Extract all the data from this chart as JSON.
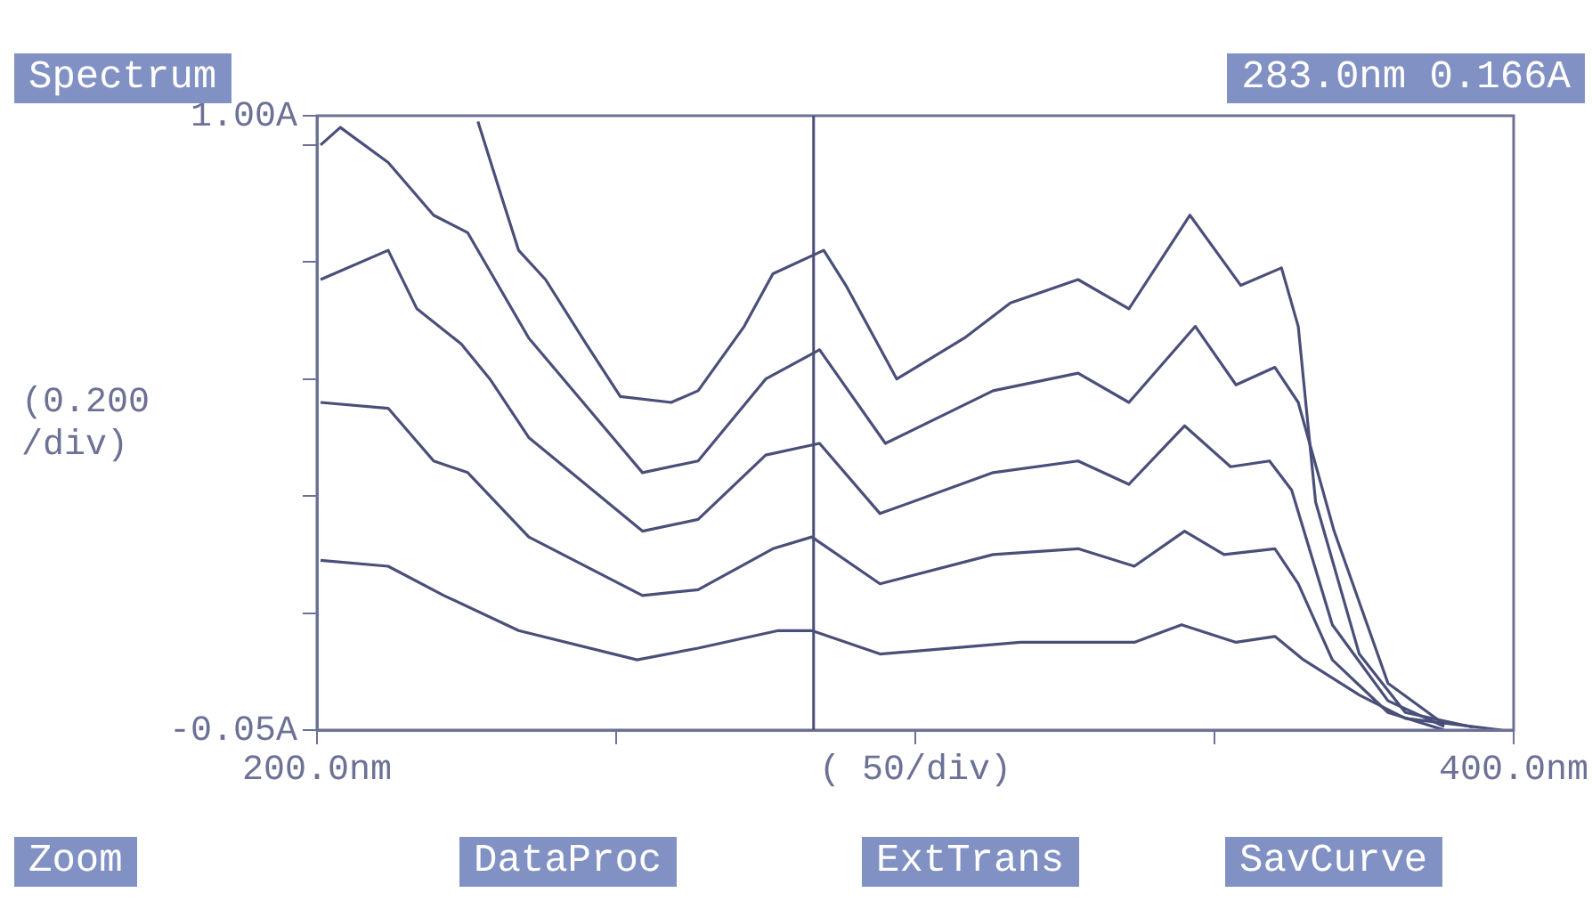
{
  "chart_data": {
    "type": "line",
    "title": "Spectrum",
    "xlabel": "( 50/div)",
    "ylabel": "(0.200 /div)",
    "xlim": [
      200,
      400
    ],
    "xticks": [
      {
        "value": 200,
        "label": "200.0nm"
      },
      {
        "value": 250,
        "label": null
      },
      {
        "value": 300,
        "label": null
      },
      {
        "value": 350,
        "label": null
      },
      {
        "value": 400,
        "label": "400.0nm"
      }
    ],
    "ylim": [
      -0.05,
      1.0
    ],
    "yticks": [
      {
        "value": -0.05,
        "label": "-0.05A"
      },
      {
        "value": 0.15,
        "label": null
      },
      {
        "value": 0.35,
        "label": null
      },
      {
        "value": 0.55,
        "label": null
      },
      {
        "value": 0.75,
        "label": null
      },
      {
        "value": 0.95,
        "label": null
      },
      {
        "value": 1.0,
        "label": "1.00A"
      }
    ],
    "grid": false,
    "legend": false,
    "marker": "none",
    "line_style": "solid",
    "ref_lines": [
      {
        "axis": "x",
        "value": 283,
        "color": "#4a4f7a"
      }
    ],
    "annotations": [
      "283.0nm  0.166A",
      "Zoom",
      "DataProc",
      "ExtTrans",
      "SavCurve"
    ],
    "series": [
      {
        "color": "#4a4f7a",
        "x": [
          226.9,
          230.9,
          233.7,
          238.2,
          245.0,
          250.7,
          259.2,
          263.7,
          271.4,
          276.2,
          284.7,
          288.4,
          296.9,
          308.2,
          315.9,
          327.2,
          335.7,
          345.9,
          354.4,
          361.2,
          364.0,
          366.9,
          374.2,
          381.9,
          393.2
        ],
        "values": [
          0.99,
          0.86,
          0.77,
          0.72,
          0.61,
          0.52,
          0.51,
          0.53,
          0.64,
          0.73,
          0.77,
          0.71,
          0.55,
          0.62,
          0.68,
          0.72,
          0.67,
          0.83,
          0.71,
          0.74,
          0.64,
          0.34,
          0.08,
          -0.02,
          -0.045
        ]
      },
      {
        "color": "#4a4f7a",
        "x": [
          200.6,
          203.9,
          211.9,
          219.5,
          225.2,
          235.4,
          254.4,
          263.7,
          275.0,
          284.0,
          295.0,
          313.0,
          327.2,
          335.7,
          346.8,
          353.6,
          360.1,
          364.0,
          370.0,
          379.0,
          388.4
        ],
        "values": [
          0.95,
          0.98,
          0.92,
          0.83,
          0.8,
          0.62,
          0.39,
          0.41,
          0.55,
          0.6,
          0.44,
          0.53,
          0.56,
          0.51,
          0.64,
          0.54,
          0.57,
          0.51,
          0.29,
          0.03,
          -0.04
        ]
      },
      {
        "color": "#4a4f7a",
        "x": [
          200.6,
          211.9,
          216.7,
          224.1,
          228.9,
          235.4,
          254.4,
          263.7,
          275.0,
          284.0,
          294.1,
          313.0,
          327.2,
          335.7,
          345.0,
          352.7,
          359.2,
          362.9,
          369.7,
          379.0,
          388.4
        ],
        "values": [
          0.72,
          0.77,
          0.67,
          0.61,
          0.55,
          0.45,
          0.29,
          0.31,
          0.42,
          0.44,
          0.32,
          0.39,
          0.41,
          0.37,
          0.47,
          0.4,
          0.41,
          0.36,
          0.13,
          0.0,
          -0.044
        ]
      },
      {
        "color": "#4a4f7a",
        "x": [
          200.6,
          211.9,
          219.5,
          225.2,
          235.4,
          254.4,
          263.7,
          276.2,
          282.7,
          294.1,
          313.0,
          327.2,
          336.6,
          345.0,
          351.6,
          360.1,
          364.0,
          369.7,
          379.0,
          388.4
        ],
        "values": [
          0.51,
          0.5,
          0.41,
          0.39,
          0.28,
          0.18,
          0.19,
          0.26,
          0.28,
          0.2,
          0.25,
          0.26,
          0.23,
          0.29,
          0.25,
          0.26,
          0.2,
          0.07,
          -0.02,
          -0.05
        ]
      },
      {
        "color": "#4a4f7a",
        "x": [
          200.6,
          211.9,
          221.2,
          233.7,
          253.5,
          263.7,
          277.1,
          282.7,
          294.1,
          317.6,
          336.6,
          344.5,
          353.6,
          360.1,
          364.9,
          374.2,
          381.9,
          398.0
        ],
        "values": [
          0.24,
          0.23,
          0.18,
          0.12,
          0.07,
          0.09,
          0.12,
          0.12,
          0.08,
          0.1,
          0.1,
          0.13,
          0.1,
          0.11,
          0.07,
          0.01,
          -0.03,
          -0.05
        ]
      }
    ]
  }
}
